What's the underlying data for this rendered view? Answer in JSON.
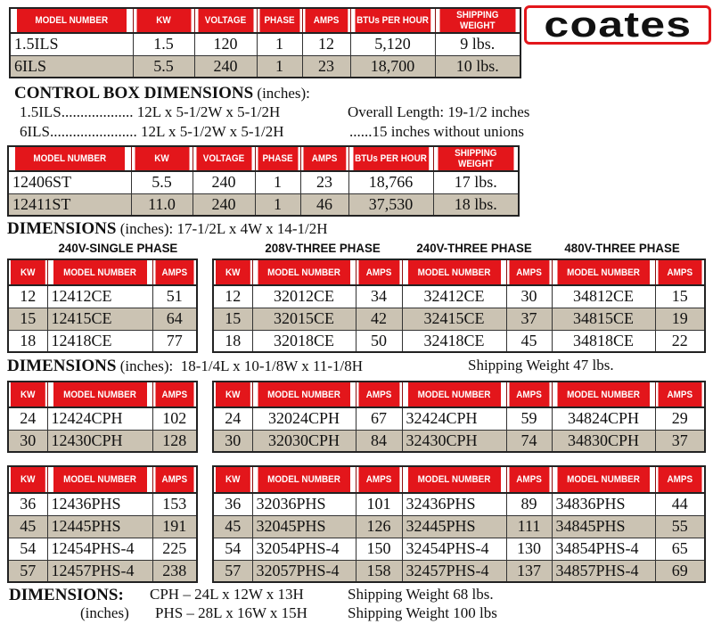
{
  "logo": {
    "text": "coates"
  },
  "colors": {
    "header_red": "#e3161b",
    "alt_row": "#cbc3b3"
  },
  "ils_table": {
    "headers": [
      "MODEL NUMBER",
      "KW",
      "VOLTAGE",
      "PHASE",
      "AMPS",
      "BTUs PER HOUR",
      "SHIPPING WEIGHT"
    ],
    "rows": [
      [
        "1.5ILS",
        "1.5",
        "120",
        "1",
        "12",
        "5,120",
        "9 lbs."
      ],
      [
        "6ILS",
        "5.5",
        "240",
        "1",
        "23",
        "18,700",
        "10 lbs."
      ]
    ]
  },
  "control_box": {
    "heading": "CONTROL BOX DIMENSIONS",
    "heading_unit": "(inches):",
    "lines": [
      {
        "model": "1.5ILS",
        "dots": "...................",
        "dims": "12L x 5-1/2W x 5-1/2H",
        "note": "Overall Length: 19-1/2 inches"
      },
      {
        "model": "6ILS",
        "dots": ".......................",
        "dims": "12L x 5-1/2W x 5-1/2H",
        "note": "......15 inches without unions"
      }
    ]
  },
  "st_table": {
    "headers": [
      "MODEL NUMBER",
      "KW",
      "VOLTAGE",
      "PHASE",
      "AMPS",
      "BTUs PER HOUR",
      "SHIPPING WEIGHT"
    ],
    "rows": [
      [
        "12406ST",
        "5.5",
        "240",
        "1",
        "23",
        "18,766",
        "17 lbs."
      ],
      [
        "12411ST",
        "11.0",
        "240",
        "1",
        "46",
        "37,530",
        "18 lbs."
      ]
    ]
  },
  "st_dims": {
    "label": "DIMENSIONS",
    "unit": "(inches):",
    "value": "17-1/2L x 4W x 14-1/2H"
  },
  "groups": [
    "240V-SINGLE PHASE",
    "208V-THREE PHASE",
    "240V-THREE PHASE",
    "480V-THREE PHASE"
  ],
  "ce_single": {
    "headers": [
      "KW",
      "MODEL NUMBER",
      "AMPS"
    ],
    "rows": [
      [
        "12",
        "12412CE",
        "51"
      ],
      [
        "15",
        "12415CE",
        "64"
      ],
      [
        "18",
        "12418CE",
        "77"
      ]
    ]
  },
  "ce_three": {
    "headers": [
      "KW",
      "MODEL NUMBER",
      "AMPS",
      "MODEL NUMBER",
      "AMPS",
      "MODEL NUMBER",
      "AMPS"
    ],
    "rows": [
      [
        "12",
        "32012CE",
        "34",
        "32412CE",
        "30",
        "34812CE",
        "15"
      ],
      [
        "15",
        "32015CE",
        "42",
        "32415CE",
        "37",
        "34815CE",
        "19"
      ],
      [
        "18",
        "32018CE",
        "50",
        "32418CE",
        "45",
        "34818CE",
        "22"
      ]
    ]
  },
  "ce_dims": {
    "label": "DIMENSIONS",
    "unit": "(inches):",
    "value": "18-1/4L x 10-1/8W x 11-1/8H",
    "weight": "Shipping Weight 47 lbs."
  },
  "cph_single": {
    "headers": [
      "KW",
      "MODEL NUMBER",
      "AMPS"
    ],
    "rows": [
      [
        "24",
        "12424CPH",
        "102"
      ],
      [
        "30",
        "12430CPH",
        "128"
      ]
    ]
  },
  "cph_three": {
    "headers": [
      "KW",
      "MODEL NUMBER",
      "AMPS",
      "MODEL NUMBER",
      "AMPS",
      "MODEL NUMBER",
      "AMPS"
    ],
    "rows": [
      [
        "24",
        "32024CPH",
        "67",
        "32424CPH",
        "59",
        "34824CPH",
        "29"
      ],
      [
        "30",
        "32030CPH",
        "84",
        "32430CPH",
        "74",
        "34830CPH",
        "37"
      ]
    ]
  },
  "phs_single": {
    "headers": [
      "KW",
      "MODEL NUMBER",
      "AMPS"
    ],
    "rows": [
      [
        "36",
        "12436PHS",
        "153"
      ],
      [
        "45",
        "12445PHS",
        "191"
      ],
      [
        "54",
        "12454PHS-4",
        "225"
      ],
      [
        "57",
        "12457PHS-4",
        "238"
      ]
    ]
  },
  "phs_three": {
    "headers": [
      "KW",
      "MODEL NUMBER",
      "AMPS",
      "MODEL NUMBER",
      "AMPS",
      "MODEL NUMBER",
      "AMPS"
    ],
    "rows": [
      [
        "36",
        "32036PHS",
        "101",
        "32436PHS",
        "89",
        "34836PHS",
        "44"
      ],
      [
        "45",
        "32045PHS",
        "126",
        "32445PHS",
        "111",
        "34845PHS",
        "55"
      ],
      [
        "54",
        "32054PHS-4",
        "150",
        "32454PHS-4",
        "130",
        "34854PHS-4",
        "65"
      ],
      [
        "57",
        "32057PHS-4",
        "158",
        "32457PHS-4",
        "137",
        "34857PHS-4",
        "69"
      ]
    ]
  },
  "final_dims": {
    "label": "DIMENSIONS:",
    "unit": "(inches)",
    "lines": [
      {
        "dims": "CPH – 24L x 12W x 13H",
        "weight": "Shipping Weight 68 lbs."
      },
      {
        "dims": "PHS – 28L x 16W x 15H",
        "weight": "Shipping Weight 100 lbs"
      }
    ]
  }
}
